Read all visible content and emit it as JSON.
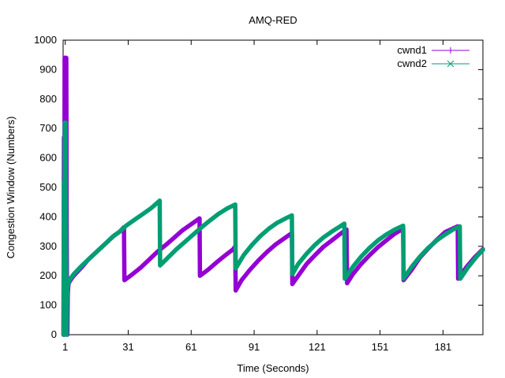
{
  "chart_data": {
    "type": "line",
    "title": "AMQ-RED",
    "xlabel": "Time (Seconds)",
    "ylabel": "Congestion Window (Numbers)",
    "xlim": [
      0,
      200
    ],
    "ylim": [
      0,
      1000
    ],
    "xticks": [
      1,
      31,
      61,
      91,
      121,
      151,
      181
    ],
    "yticks": [
      0,
      100,
      200,
      300,
      400,
      500,
      600,
      700,
      800,
      900,
      1000
    ],
    "grid": false,
    "legend": "top-right",
    "series": [
      {
        "name": "cwnd1",
        "color": "#9400d3",
        "marker": "plus",
        "points": [
          [
            0.2,
            0
          ],
          [
            0.4,
            670
          ],
          [
            0.6,
            0
          ],
          [
            0.7,
            940
          ],
          [
            0.9,
            520
          ],
          [
            1.0,
            940
          ],
          [
            1.2,
            730
          ],
          [
            1.5,
            940
          ],
          [
            1.7,
            360
          ],
          [
            1.9,
            0
          ],
          [
            2.0,
            0
          ],
          [
            2.2,
            140
          ],
          [
            2.5,
            170
          ],
          [
            3,
            180
          ],
          [
            4,
            190
          ],
          [
            5,
            200
          ],
          [
            7,
            215
          ],
          [
            9,
            230
          ],
          [
            12,
            255
          ],
          [
            15,
            275
          ],
          [
            18,
            295
          ],
          [
            21,
            315
          ],
          [
            24,
            335
          ],
          [
            27,
            350
          ],
          [
            29,
            365
          ],
          [
            29.2,
            185
          ],
          [
            33,
            205
          ],
          [
            37,
            228
          ],
          [
            41,
            255
          ],
          [
            45,
            282
          ],
          [
            49,
            305
          ],
          [
            53,
            330
          ],
          [
            57,
            355
          ],
          [
            61,
            375
          ],
          [
            65,
            395
          ],
          [
            65.2,
            200
          ],
          [
            69,
            220
          ],
          [
            73,
            245
          ],
          [
            77,
            268
          ],
          [
            81,
            290
          ],
          [
            82,
            300
          ],
          [
            82.2,
            150
          ],
          [
            85,
            185
          ],
          [
            89,
            220
          ],
          [
            93,
            252
          ],
          [
            97,
            280
          ],
          [
            101,
            305
          ],
          [
            105,
            325
          ],
          [
            109,
            345
          ],
          [
            109.2,
            172
          ],
          [
            112,
            200
          ],
          [
            116,
            240
          ],
          [
            120,
            270
          ],
          [
            124,
            298
          ],
          [
            128,
            320
          ],
          [
            132,
            342
          ],
          [
            135,
            357
          ],
          [
            135.3,
            175
          ],
          [
            138,
            205
          ],
          [
            142,
            240
          ],
          [
            146,
            270
          ],
          [
            150,
            297
          ],
          [
            154,
            320
          ],
          [
            158,
            343
          ],
          [
            162,
            360
          ],
          [
            162.2,
            185
          ],
          [
            166,
            220
          ],
          [
            170,
            262
          ],
          [
            174,
            293
          ],
          [
            178,
            322
          ],
          [
            182,
            348
          ],
          [
            188,
            368
          ],
          [
            188.2,
            190
          ],
          [
            192,
            228
          ],
          [
            196,
            262
          ],
          [
            200,
            290
          ]
        ]
      },
      {
        "name": "cwnd2",
        "color": "#009e73",
        "marker": "cross",
        "points": [
          [
            0.2,
            0
          ],
          [
            0.4,
            520
          ],
          [
            0.6,
            0
          ],
          [
            0.8,
            720
          ],
          [
            1.0,
            420
          ],
          [
            1.2,
            720
          ],
          [
            1.4,
            360
          ],
          [
            1.6,
            0
          ],
          [
            1.9,
            130
          ],
          [
            2.2,
            165
          ],
          [
            2.5,
            175
          ],
          [
            3,
            185
          ],
          [
            4,
            195
          ],
          [
            5,
            205
          ],
          [
            7,
            220
          ],
          [
            9,
            235
          ],
          [
            12,
            255
          ],
          [
            15,
            275
          ],
          [
            18,
            295
          ],
          [
            21,
            315
          ],
          [
            24,
            335
          ],
          [
            27,
            350
          ],
          [
            30,
            370
          ],
          [
            34,
            390
          ],
          [
            38,
            410
          ],
          [
            42,
            430
          ],
          [
            46,
            455
          ],
          [
            46.2,
            235
          ],
          [
            50,
            262
          ],
          [
            54,
            290
          ],
          [
            58,
            315
          ],
          [
            62,
            340
          ],
          [
            66,
            365
          ],
          [
            70,
            388
          ],
          [
            74,
            410
          ],
          [
            78,
            428
          ],
          [
            82,
            442
          ],
          [
            82.2,
            225
          ],
          [
            86,
            270
          ],
          [
            90,
            305
          ],
          [
            94,
            335
          ],
          [
            98,
            360
          ],
          [
            102,
            380
          ],
          [
            106,
            395
          ],
          [
            109,
            405
          ],
          [
            109.2,
            205
          ],
          [
            112,
            240
          ],
          [
            116,
            275
          ],
          [
            120,
            305
          ],
          [
            124,
            330
          ],
          [
            128,
            350
          ],
          [
            132,
            368
          ],
          [
            134,
            377
          ],
          [
            134.2,
            190
          ],
          [
            138,
            230
          ],
          [
            142,
            265
          ],
          [
            146,
            295
          ],
          [
            150,
            320
          ],
          [
            154,
            340
          ],
          [
            158,
            357
          ],
          [
            162,
            370
          ],
          [
            162.2,
            190
          ],
          [
            166,
            230
          ],
          [
            170,
            265
          ],
          [
            174,
            295
          ],
          [
            178,
            320
          ],
          [
            182,
            340
          ],
          [
            186,
            358
          ],
          [
            189,
            368
          ],
          [
            189.2,
            190
          ],
          [
            193,
            230
          ],
          [
            197,
            265
          ],
          [
            200,
            288
          ]
        ]
      }
    ]
  }
}
